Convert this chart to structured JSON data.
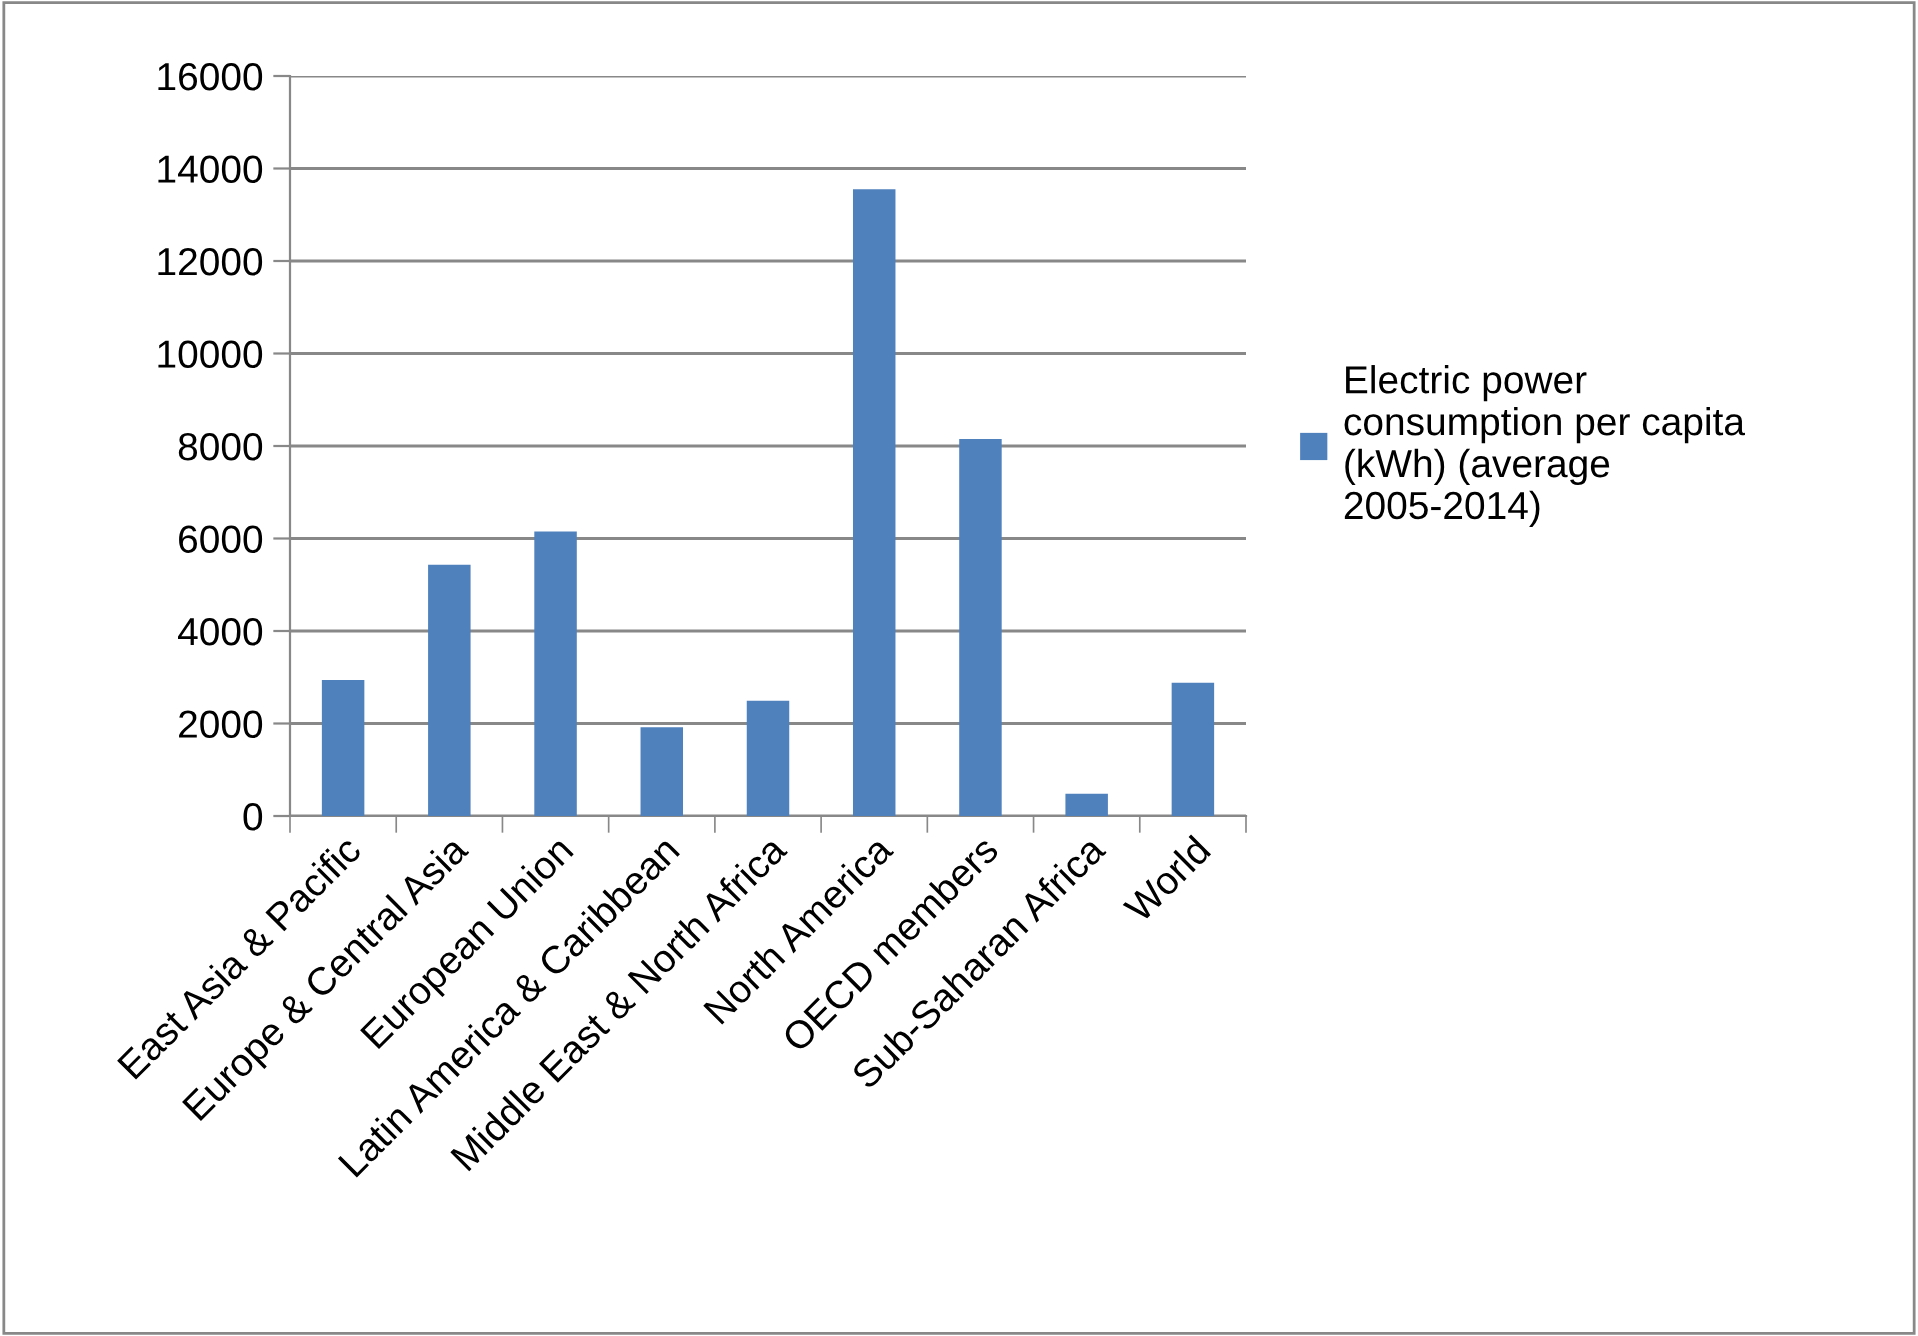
{
  "chart_data": {
    "type": "bar",
    "categories": [
      "East Asia & Pacific",
      "Europe & Central Asia",
      "European Union",
      "Latin America & Caribbean",
      "Middle East & North Africa",
      "North America",
      "OECD members",
      "Sub-Saharan Africa",
      "World"
    ],
    "series": [
      {
        "name": "Electric power consumption per capita (kWh) (average 2005-2014)",
        "color": "#4f81bd",
        "values": [
          2940,
          5430,
          6150,
          1920,
          2490,
          13550,
          8150,
          480,
          2880
        ]
      }
    ],
    "ylim": [
      0,
      16000
    ],
    "yticks": [
      0,
      2000,
      4000,
      6000,
      8000,
      10000,
      12000,
      14000,
      16000
    ],
    "grid": "y",
    "legend": "right"
  }
}
